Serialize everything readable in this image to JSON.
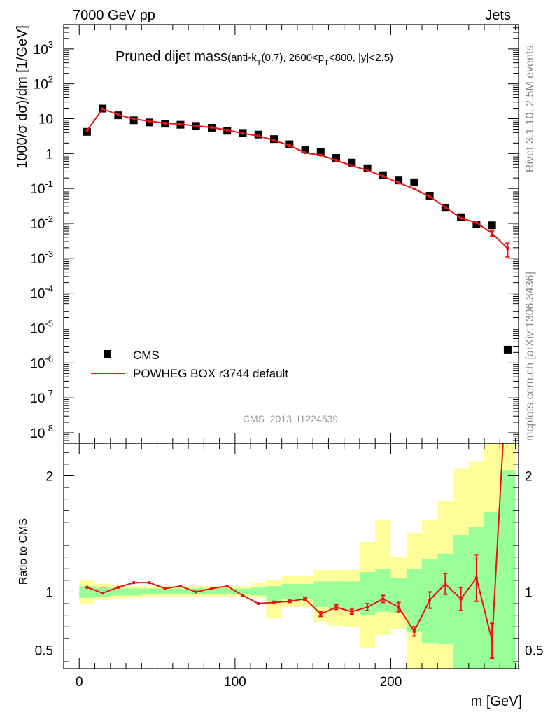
{
  "header": {
    "left": "7000 GeV pp",
    "right": "Jets"
  },
  "side_text": {
    "rivet": "Rivet 3.1.10,  2.5M events",
    "mcplots": "mcplots.cern.ch [arXiv:1306.3436]"
  },
  "colors": {
    "mc": "#ee1111",
    "data": "#000000",
    "band_yellow": "#ffff99",
    "band_green": "#99ff99"
  },
  "chart_data": [
    {
      "type": "scatter",
      "title_main": "Pruned dijet mass",
      "title_sub_pre": "(anti-k",
      "title_sub_k_sub": "T",
      "title_sub_mid": "(0.7), 2600<p",
      "title_sub_p_sub": "T",
      "title_sub_post": "<800, |y|<2.5)",
      "ylabel": "1000/σ dσ)/dm [1/GeV]",
      "yscale": "log",
      "ylim": [
        5e-09,
        5000
      ],
      "xlim": [
        -10,
        282
      ],
      "grid": false,
      "legend_placement": "lower-left",
      "watermark": "CMS_2013_I1224539",
      "y_tick_labels": [
        {
          "exp": "-8",
          "v": 1e-08
        },
        {
          "exp": "-7",
          "v": 1e-07
        },
        {
          "exp": "-6",
          "v": 1e-06
        },
        {
          "exp": "-5",
          "v": 1e-05
        },
        {
          "exp": "-4",
          "v": 0.0001
        },
        {
          "exp": "-3",
          "v": 0.001
        },
        {
          "exp": "-2",
          "v": 0.01
        },
        {
          "exp": "-1",
          "v": 0.1
        },
        {
          "text": "1",
          "v": 1
        },
        {
          "text": "10",
          "v": 10
        },
        {
          "exp": "2",
          "v": 100
        },
        {
          "exp": "3",
          "v": 1000
        }
      ],
      "series": [
        {
          "name": "CMS",
          "style": "markers",
          "x": [
            5,
            15,
            25,
            35,
            45,
            55,
            65,
            75,
            85,
            95,
            105,
            115,
            125,
            135,
            145,
            155,
            165,
            175,
            185,
            195,
            205,
            215,
            225,
            235,
            245,
            255,
            265,
            275
          ],
          "y": [
            4.2,
            19.5,
            12.5,
            9.0,
            7.8,
            7.2,
            6.7,
            6.2,
            5.5,
            4.5,
            3.9,
            3.5,
            2.6,
            1.85,
            1.3,
            1.1,
            0.75,
            0.55,
            0.38,
            0.24,
            0.17,
            0.15,
            0.062,
            0.028,
            0.015,
            0.0093,
            0.0088,
            2.4e-06
          ]
        },
        {
          "name": "POWHEG BOX r3744 default",
          "style": "line",
          "x": [
            5,
            15,
            25,
            35,
            45,
            55,
            65,
            75,
            85,
            95,
            105,
            115,
            125,
            135,
            145,
            155,
            165,
            175,
            185,
            195,
            205,
            215,
            225,
            235,
            245,
            255,
            265,
            275
          ],
          "y": [
            4.6,
            19.0,
            13.0,
            9.8,
            8.5,
            7.4,
            7.0,
            6.2,
            5.6,
            4.7,
            3.8,
            3.2,
            2.4,
            1.7,
            1.05,
            0.9,
            0.64,
            0.45,
            0.33,
            0.225,
            0.145,
            0.098,
            0.058,
            0.029,
            0.014,
            0.0105,
            0.0052,
            0.0019
          ],
          "err": [
            0,
            0,
            0,
            0,
            0,
            0,
            0,
            0,
            0,
            0,
            0,
            0,
            0,
            0,
            0,
            0,
            0,
            0,
            0,
            0,
            0,
            0,
            0,
            0,
            0,
            0,
            0.0009,
            0.0008
          ]
        }
      ]
    },
    {
      "type": "line",
      "ylabel": "Ratio to CMS",
      "xlabel": "m [GeV]",
      "ylim": [
        0.34,
        2.28
      ],
      "xlim": [
        -10,
        282
      ],
      "x_tick_labels": [
        {
          "text": "0",
          "v": 0
        },
        {
          "text": "100",
          "v": 100
        },
        {
          "text": "200",
          "v": 200
        }
      ],
      "y_tick_labels": [
        {
          "text": "0.5",
          "v": 0.5
        },
        {
          "text": "1",
          "v": 1
        },
        {
          "text": "2",
          "v": 2
        }
      ],
      "reference_line": 1,
      "bands": {
        "edges": [
          0,
          10,
          20,
          30,
          40,
          50,
          60,
          70,
          80,
          90,
          100,
          110,
          120,
          130,
          140,
          150,
          160,
          170,
          180,
          190,
          200,
          210,
          220,
          230,
          240,
          250,
          260,
          270,
          280
        ],
        "yellow_low": [
          0.9,
          0.93,
          0.94,
          0.95,
          0.96,
          0.96,
          0.96,
          0.96,
          0.96,
          0.96,
          0.96,
          0.95,
          0.77,
          0.87,
          0.87,
          0.74,
          0.71,
          0.7,
          0.52,
          0.63,
          0.68,
          0.34,
          0.34,
          0.34,
          0.34,
          0.34,
          0.34,
          0.34
        ],
        "yellow_high": [
          1.1,
          1.07,
          1.06,
          1.05,
          1.05,
          1.05,
          1.05,
          1.05,
          1.05,
          1.05,
          1.05,
          1.08,
          1.1,
          1.14,
          1.14,
          1.19,
          1.19,
          1.19,
          1.43,
          1.62,
          1.3,
          1.51,
          1.62,
          1.78,
          2.06,
          2.12,
          2.28,
          2.28
        ],
        "green_low": [
          0.95,
          0.96,
          0.97,
          0.97,
          0.98,
          0.98,
          0.98,
          0.98,
          0.98,
          0.98,
          0.98,
          0.97,
          0.92,
          0.94,
          0.94,
          0.87,
          0.85,
          0.85,
          0.8,
          0.83,
          0.82,
          0.66,
          0.56,
          0.55,
          0.34,
          0.34,
          0.34,
          0.34
        ],
        "green_high": [
          1.05,
          1.04,
          1.03,
          1.03,
          1.03,
          1.03,
          1.03,
          1.03,
          1.03,
          1.03,
          1.03,
          1.04,
          1.05,
          1.07,
          1.07,
          1.09,
          1.09,
          1.09,
          1.17,
          1.2,
          1.12,
          1.2,
          1.28,
          1.33,
          1.49,
          1.56,
          1.69,
          2.05
        ]
      },
      "series": [
        {
          "name": "POWHEG BOX r3744 default",
          "x": [
            5,
            15,
            25,
            35,
            45,
            55,
            65,
            75,
            85,
            95,
            105,
            115,
            125,
            135,
            145,
            155,
            165,
            175,
            185,
            195,
            205,
            215,
            225,
            235,
            245,
            255,
            265,
            275
          ],
          "y": [
            1.04,
            0.99,
            1.04,
            1.08,
            1.08,
            1.03,
            1.05,
            1.0,
            1.03,
            1.05,
            0.97,
            0.9,
            0.91,
            0.92,
            0.94,
            0.81,
            0.87,
            0.83,
            0.87,
            0.94,
            0.87,
            0.66,
            0.93,
            1.07,
            0.94,
            1.12,
            0.58,
            3.0
          ],
          "err": [
            0,
            0,
            0,
            0,
            0,
            0,
            0,
            0,
            0,
            0,
            0,
            0,
            0.01,
            0.01,
            0.01,
            0.02,
            0.02,
            0.02,
            0.03,
            0.03,
            0.04,
            0.04,
            0.07,
            0.09,
            0.1,
            0.2,
            0.15,
            0
          ]
        }
      ]
    }
  ]
}
